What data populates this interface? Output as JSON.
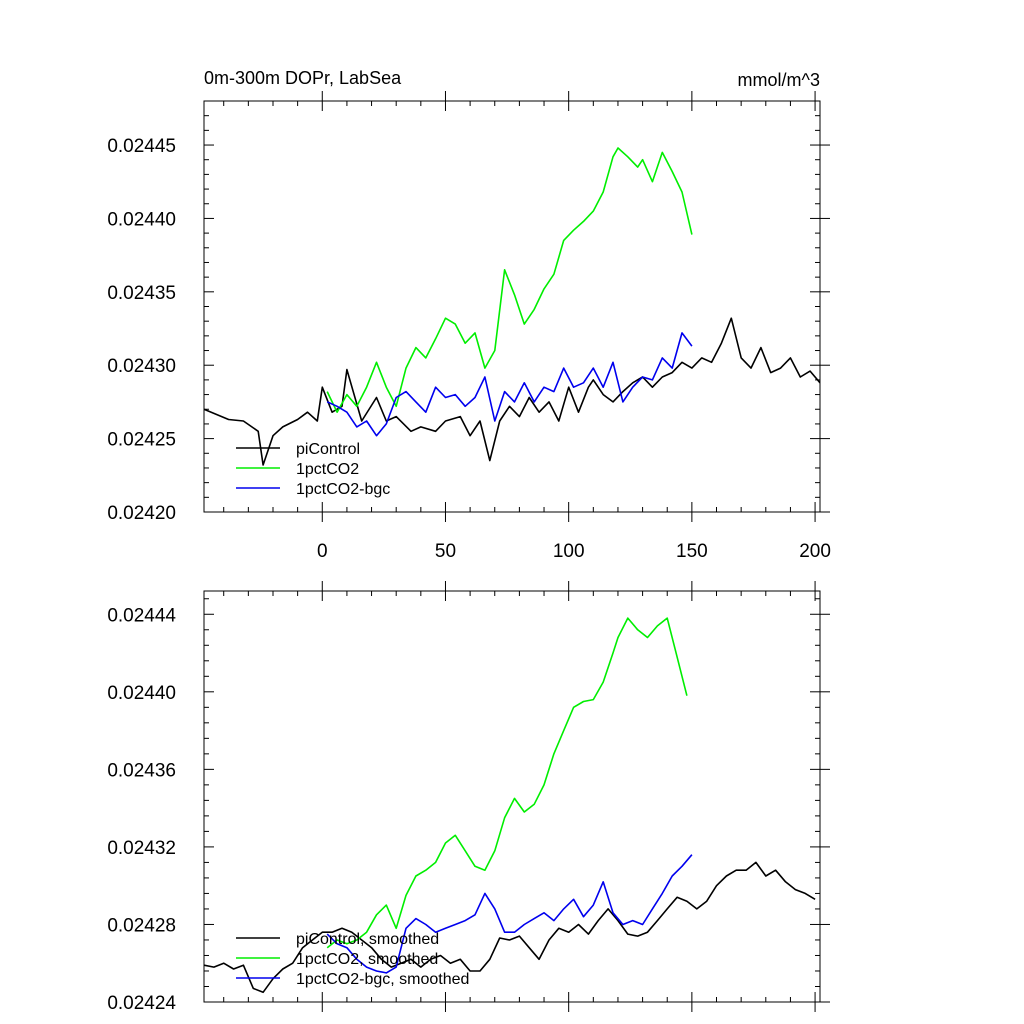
{
  "chart_data": [
    {
      "type": "line",
      "title": "0m-300m DOPr, LabSea",
      "units": "mmol/m^3",
      "xlim": [
        -48,
        202
      ],
      "ylim": [
        0.0242,
        0.02448
      ],
      "xticks": [
        "0",
        "50",
        "100",
        "150",
        "200"
      ],
      "yticks": [
        "0.02420",
        "0.02425",
        "0.02430",
        "0.02435",
        "0.02440",
        "0.02445"
      ],
      "legend": [
        "piControl",
        "1pctCO2",
        "1pctCO2-bgc"
      ],
      "legend_position": "bottom-left",
      "series": [
        {
          "name": "piControl",
          "color": "#000000",
          "x": [
            -48,
            -38,
            -32,
            -26,
            -24,
            -20,
            -16,
            -10,
            -6,
            -2,
            0,
            4,
            8,
            10,
            16,
            22,
            26,
            30,
            36,
            40,
            46,
            50,
            56,
            60,
            64,
            68,
            72,
            76,
            80,
            84,
            88,
            92,
            96,
            100,
            104,
            108,
            110,
            114,
            118,
            122,
            126,
            130,
            134,
            138,
            142,
            146,
            150,
            154,
            158,
            162,
            166,
            170,
            174,
            178,
            182,
            186,
            190,
            194,
            198,
            202
          ],
          "y": [
            0.02427,
            0.024263,
            0.024262,
            0.024255,
            0.024232,
            0.024252,
            0.024258,
            0.024263,
            0.024268,
            0.024262,
            0.024285,
            0.024268,
            0.024272,
            0.024297,
            0.024262,
            0.024278,
            0.024262,
            0.024265,
            0.024255,
            0.024258,
            0.024255,
            0.024262,
            0.024265,
            0.024252,
            0.024262,
            0.024235,
            0.024262,
            0.024272,
            0.024265,
            0.024278,
            0.024268,
            0.024275,
            0.024262,
            0.024285,
            0.024268,
            0.024285,
            0.02429,
            0.02428,
            0.024275,
            0.024282,
            0.024288,
            0.024292,
            0.024285,
            0.024292,
            0.024295,
            0.024302,
            0.024298,
            0.024305,
            0.024302,
            0.024315,
            0.024332,
            0.024305,
            0.024298,
            0.024312,
            0.024295,
            0.024298,
            0.024305,
            0.024292,
            0.024296,
            0.024288
          ]
        },
        {
          "name": "1pctCO2",
          "color": "#00ee00",
          "x": [
            2,
            6,
            10,
            14,
            18,
            22,
            26,
            30,
            34,
            38,
            42,
            46,
            50,
            54,
            58,
            62,
            66,
            70,
            74,
            78,
            82,
            86,
            90,
            94,
            98,
            102,
            106,
            110,
            114,
            118,
            120,
            124,
            128,
            130,
            134,
            138,
            142,
            146,
            150
          ],
          "y": [
            0.024282,
            0.024268,
            0.02428,
            0.024272,
            0.024285,
            0.024302,
            0.024285,
            0.024272,
            0.024298,
            0.024312,
            0.024305,
            0.024318,
            0.024332,
            0.024328,
            0.024315,
            0.024322,
            0.024298,
            0.02431,
            0.024365,
            0.024348,
            0.024328,
            0.024338,
            0.024352,
            0.024362,
            0.024385,
            0.024392,
            0.024398,
            0.024405,
            0.024418,
            0.024442,
            0.024448,
            0.024442,
            0.024435,
            0.02444,
            0.024425,
            0.024445,
            0.024432,
            0.024418,
            0.024389
          ]
        },
        {
          "name": "1pctCO2-bgc",
          "color": "#0000ee",
          "x": [
            2,
            6,
            10,
            14,
            18,
            22,
            26,
            30,
            34,
            38,
            42,
            46,
            50,
            54,
            58,
            62,
            66,
            70,
            74,
            78,
            82,
            86,
            90,
            94,
            98,
            102,
            106,
            110,
            114,
            118,
            122,
            126,
            130,
            134,
            138,
            142,
            146,
            150
          ],
          "y": [
            0.024275,
            0.024272,
            0.024268,
            0.024258,
            0.024262,
            0.024252,
            0.02426,
            0.024278,
            0.024282,
            0.024275,
            0.024268,
            0.024285,
            0.024278,
            0.02428,
            0.024272,
            0.024278,
            0.024292,
            0.024262,
            0.024282,
            0.024275,
            0.024288,
            0.024275,
            0.024285,
            0.024282,
            0.024298,
            0.024285,
            0.024288,
            0.024298,
            0.024285,
            0.024302,
            0.024275,
            0.024285,
            0.024292,
            0.02429,
            0.024305,
            0.024298,
            0.024322,
            0.024313
          ]
        }
      ]
    },
    {
      "type": "line",
      "ylim": [
        0.02424,
        0.024452
      ],
      "xlim": [
        -48,
        202
      ],
      "yticks": [
        "0.02424",
        "0.02428",
        "0.02432",
        "0.02436",
        "0.02440",
        "0.02444"
      ],
      "legend": [
        "piControl, smoothed",
        "1pctCO2, smoothed",
        "1pctCO2-bgc, smoothed"
      ],
      "legend_position": "bottom-left",
      "series": [
        {
          "name": "piControl, smoothed",
          "color": "#000000",
          "x": [
            -48,
            -44,
            -40,
            -36,
            -32,
            -28,
            -24,
            -20,
            -16,
            -12,
            -8,
            -4,
            0,
            4,
            8,
            12,
            16,
            20,
            24,
            28,
            32,
            36,
            40,
            44,
            48,
            52,
            56,
            60,
            64,
            68,
            72,
            76,
            80,
            84,
            88,
            92,
            96,
            100,
            104,
            108,
            112,
            116,
            120,
            124,
            128,
            132,
            136,
            140,
            144,
            148,
            152,
            156,
            160,
            164,
            168,
            172,
            176,
            180,
            184,
            188,
            192,
            196,
            200
          ],
          "y": [
            0.024259,
            0.024258,
            0.02426,
            0.024257,
            0.024259,
            0.024247,
            0.024245,
            0.024252,
            0.024257,
            0.02426,
            0.024268,
            0.024272,
            0.024276,
            0.024276,
            0.024278,
            0.024276,
            0.024272,
            0.024268,
            0.024262,
            0.024258,
            0.02426,
            0.024262,
            0.024258,
            0.024262,
            0.024264,
            0.02426,
            0.024262,
            0.024256,
            0.024256,
            0.024262,
            0.024273,
            0.024272,
            0.024274,
            0.024268,
            0.024262,
            0.024272,
            0.024278,
            0.024276,
            0.02428,
            0.024275,
            0.024282,
            0.024288,
            0.024282,
            0.024275,
            0.024274,
            0.024276,
            0.024282,
            0.024288,
            0.024294,
            0.024292,
            0.024288,
            0.024292,
            0.0243,
            0.024305,
            0.024308,
            0.024308,
            0.024312,
            0.024305,
            0.024308,
            0.024302,
            0.024298,
            0.024296,
            0.024293
          ]
        },
        {
          "name": "1pctCO2, smoothed",
          "color": "#00ee00",
          "x": [
            2,
            6,
            10,
            14,
            18,
            22,
            26,
            30,
            34,
            38,
            42,
            46,
            50,
            54,
            58,
            62,
            66,
            70,
            74,
            78,
            82,
            86,
            90,
            94,
            98,
            102,
            106,
            110,
            114,
            118,
            120,
            124,
            128,
            132,
            136,
            140,
            144,
            148
          ],
          "y": [
            0.024268,
            0.024272,
            0.02427,
            0.024272,
            0.024276,
            0.024285,
            0.02429,
            0.024278,
            0.024295,
            0.024305,
            0.024308,
            0.024312,
            0.024322,
            0.024326,
            0.024318,
            0.02431,
            0.024308,
            0.024318,
            0.024335,
            0.024345,
            0.024338,
            0.024342,
            0.024352,
            0.024368,
            0.02438,
            0.024392,
            0.024395,
            0.024396,
            0.024405,
            0.02442,
            0.024428,
            0.024438,
            0.024432,
            0.024428,
            0.024434,
            0.024438,
            0.024418,
            0.024398
          ]
        },
        {
          "name": "1pctCO2-bgc, smoothed",
          "color": "#0000ee",
          "x": [
            2,
            6,
            10,
            14,
            18,
            22,
            26,
            30,
            34,
            38,
            42,
            46,
            50,
            54,
            58,
            62,
            66,
            70,
            74,
            78,
            82,
            86,
            90,
            94,
            98,
            102,
            106,
            110,
            114,
            118,
            122,
            126,
            130,
            134,
            138,
            142,
            146,
            150
          ],
          "y": [
            0.024275,
            0.02427,
            0.024268,
            0.024262,
            0.024258,
            0.024256,
            0.024255,
            0.024258,
            0.024278,
            0.024283,
            0.02428,
            0.024276,
            0.024278,
            0.02428,
            0.024282,
            0.024285,
            0.024296,
            0.024288,
            0.024276,
            0.024276,
            0.02428,
            0.024283,
            0.024286,
            0.024282,
            0.024288,
            0.024293,
            0.024284,
            0.02429,
            0.024302,
            0.024286,
            0.02428,
            0.024282,
            0.02428,
            0.024288,
            0.024296,
            0.024305,
            0.02431,
            0.024316
          ]
        }
      ]
    }
  ]
}
